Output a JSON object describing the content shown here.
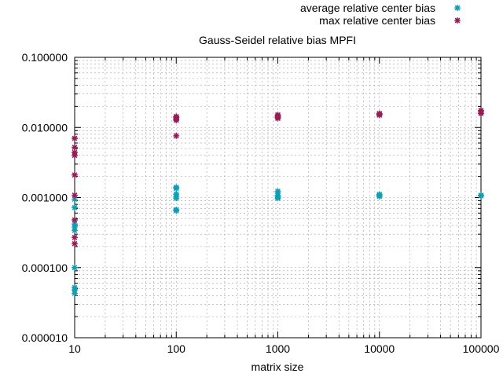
{
  "chart_data": {
    "type": "scatter",
    "title": "Gauss-Seidel relative bias MPFI",
    "xlabel": "matrix size",
    "ylabel": "",
    "xscale": "log",
    "yscale": "log",
    "xlim": [
      10,
      100000
    ],
    "ylim": [
      1e-05,
      0.1
    ],
    "grid": true,
    "legend_position": "top-right (outside plot)",
    "x_tick_labels": [
      "10",
      "100",
      "1000",
      "10000",
      "100000"
    ],
    "y_tick_labels": [
      "0.000010",
      "0.000100",
      "0.001000",
      "0.010000",
      "0.100000"
    ],
    "series": [
      {
        "name": "average relative center bias",
        "color": "#0aa0b8",
        "marker": "star",
        "points": [
          [
            10,
            0.00095
          ],
          [
            10,
            0.00072
          ],
          [
            10,
            0.00042
          ],
          [
            10,
            0.00038
          ],
          [
            10,
            0.00034
          ],
          [
            10,
            0.0001
          ],
          [
            10,
            5.2e-05
          ],
          [
            10,
            4.8e-05
          ],
          [
            10,
            4.3e-05
          ],
          [
            100,
            0.0014
          ],
          [
            100,
            0.00135
          ],
          [
            100,
            0.00112
          ],
          [
            100,
            0.00104
          ],
          [
            100,
            0.00098
          ],
          [
            100,
            0.00067
          ],
          [
            100,
            0.00065
          ],
          [
            1000,
            0.00123
          ],
          [
            1000,
            0.00116
          ],
          [
            1000,
            0.00108
          ],
          [
            1000,
            0.00102
          ],
          [
            1000,
            0.00098
          ],
          [
            10000,
            0.00111
          ],
          [
            10000,
            0.00107
          ],
          [
            10000,
            0.00104
          ],
          [
            100000,
            0.00108
          ],
          [
            100000,
            0.00106
          ]
        ]
      },
      {
        "name": "max relative center bias",
        "color": "#9b1b55",
        "marker": "star",
        "points": [
          [
            10,
            0.007
          ],
          [
            10,
            0.0052
          ],
          [
            10,
            0.0044
          ],
          [
            10,
            0.004
          ],
          [
            10,
            0.0021
          ],
          [
            10,
            0.00108
          ],
          [
            10,
            0.00048
          ],
          [
            10,
            0.00027
          ],
          [
            10,
            0.00022
          ],
          [
            100,
            0.0143
          ],
          [
            100,
            0.0138
          ],
          [
            100,
            0.0132
          ],
          [
            100,
            0.0127
          ],
          [
            100,
            0.0076
          ],
          [
            1000,
            0.0151
          ],
          [
            1000,
            0.0145
          ],
          [
            1000,
            0.014
          ],
          [
            1000,
            0.0135
          ],
          [
            10000,
            0.0158
          ],
          [
            10000,
            0.0154
          ],
          [
            10000,
            0.015
          ],
          [
            100000,
            0.0175
          ],
          [
            100000,
            0.0166
          ],
          [
            100000,
            0.0158
          ]
        ]
      }
    ]
  }
}
